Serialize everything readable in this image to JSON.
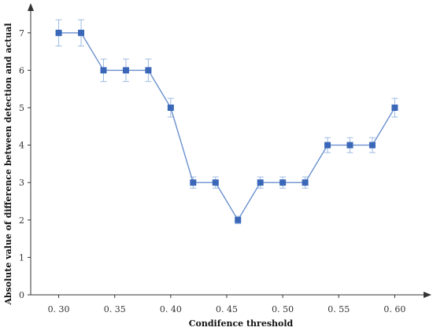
{
  "chart_data": {
    "type": "line",
    "title": "",
    "xlabel": "Condifence threshold",
    "ylabel": "Absolute value of difference between detection and actual",
    "x": [
      0.3,
      0.32,
      0.34,
      0.36,
      0.38,
      0.4,
      0.42,
      0.44,
      0.46,
      0.48,
      0.5,
      0.52,
      0.54,
      0.56,
      0.58,
      0.6
    ],
    "series": [
      {
        "values": [
          7,
          7,
          6,
          6,
          6,
          5,
          3,
          3,
          2,
          3,
          3,
          3,
          4,
          4,
          4,
          5
        ],
        "error": [
          0.35,
          0.35,
          0.3,
          0.3,
          0.3,
          0.25,
          0.15,
          0.15,
          0.1,
          0.15,
          0.15,
          0.15,
          0.2,
          0.2,
          0.2,
          0.25
        ]
      }
    ],
    "xlim": [
      0.275,
      0.625
    ],
    "ylim": [
      0,
      7.5
    ],
    "xticks": [
      0.3,
      0.35,
      0.4,
      0.45,
      0.5,
      0.55,
      0.6
    ],
    "xtick_labels": [
      "0. 30",
      "0. 35",
      "0. 40",
      "0. 45",
      "0. 50",
      "0. 55",
      "0. 60"
    ],
    "yticks": [
      0,
      1,
      2,
      3,
      4,
      5,
      6,
      7
    ],
    "ytick_labels": [
      "0",
      "1",
      "2",
      "3",
      "4",
      "5",
      "6",
      "7"
    ],
    "grid": false,
    "legend": "none",
    "line_color": "#6a8fcf",
    "marker_color": "#3a67b8",
    "errorbar_color": "#9dbbe3",
    "axis_color": "#333333"
  }
}
